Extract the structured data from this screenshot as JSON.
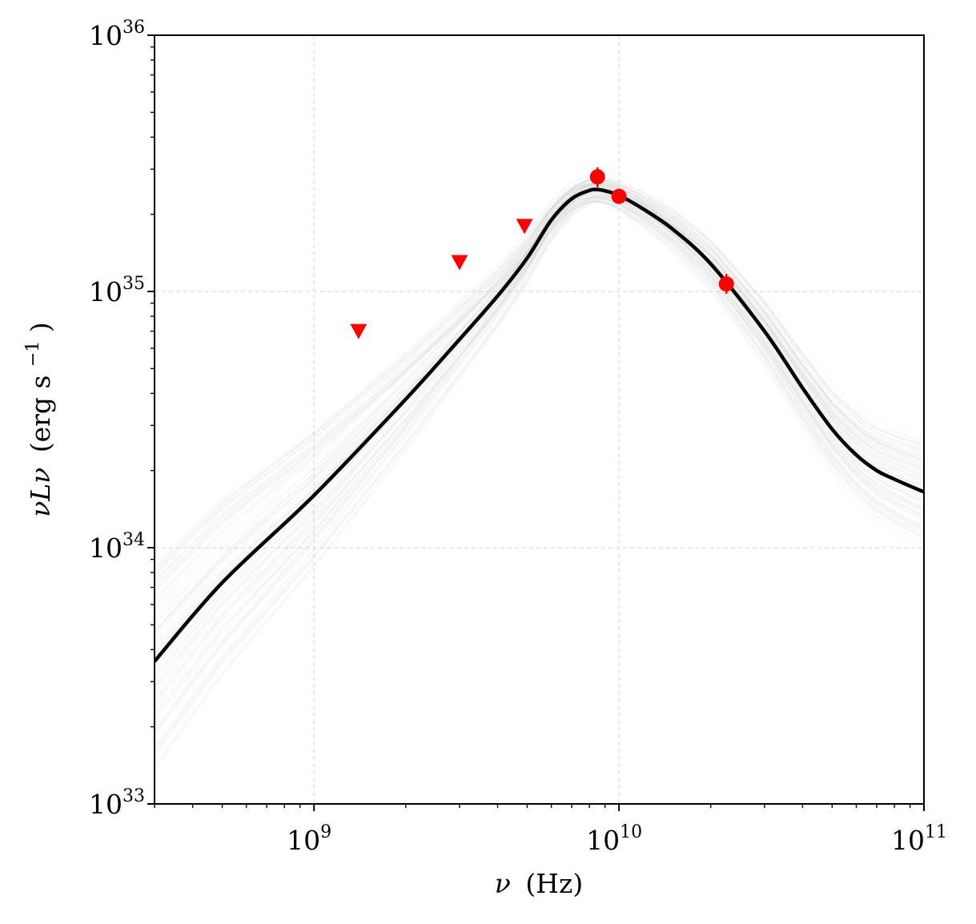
{
  "chart_data": {
    "type": "line",
    "xlabel": "ν (Hz)",
    "ylabel": "νLν (erg s−1)",
    "xlabel_parts": {
      "symbol": "ν",
      "unit": "(Hz)"
    },
    "ylabel_parts": {
      "symbol": "νLν",
      "unit": "(erg s",
      "exp": "−1",
      "close": ")"
    },
    "xscale": "log",
    "yscale": "log",
    "xlim": [
      300000000.0,
      100000000000.0
    ],
    "ylim": [
      1e+33,
      1e+36
    ],
    "grid": true,
    "x_ticks": [
      {
        "base": "10",
        "exp": "9",
        "value": 1000000000.0
      },
      {
        "base": "10",
        "exp": "10",
        "value": 10000000000.0
      },
      {
        "base": "10",
        "exp": "11",
        "value": 100000000000.0
      }
    ],
    "y_ticks": [
      {
        "base": "10",
        "exp": "33",
        "value": 1e+33
      },
      {
        "base": "10",
        "exp": "34",
        "value": 1e+34
      },
      {
        "base": "10",
        "exp": "35",
        "value": 1e+35
      },
      {
        "base": "10",
        "exp": "36",
        "value": 1e+36
      }
    ],
    "series": [
      {
        "style": "black solid line",
        "color": "#000000",
        "x": [
          300000000.0,
          500000000.0,
          1000000000.0,
          2000000000.0,
          3000000000.0,
          4000000000.0,
          5000000000.0,
          6000000000.0,
          7000000000.0,
          8000000000.0,
          8500000000.0,
          9000000000.0,
          10000000000.0,
          12000000000.0,
          15000000000.0,
          20000000000.0,
          30000000000.0,
          40000000000.0,
          50000000000.0,
          60000000000.0,
          70000000000.0,
          80000000000.0,
          100000000000.0
        ],
        "y": [
          3.6e+33,
          7.3e+33,
          1.6e+34,
          3.8e+34,
          6.5e+34,
          9.6e+34,
          1.35e+35,
          1.9e+35,
          2.3e+35,
          2.48e+35,
          2.5e+35,
          2.47e+35,
          2.37e+35,
          2.1e+35,
          1.75e+35,
          1.28e+35,
          7e+34,
          4.2e+34,
          2.9e+34,
          2.3e+34,
          2e+34,
          1.85e+34,
          1.65e+34
        ]
      },
      {
        "style": "red circles with error bars",
        "color": "#ff0000",
        "marker": "circle",
        "x": [
          8500000000.0,
          10000000000.0,
          22500000000.0
        ],
        "y": [
          2.8e+35,
          2.35e+35,
          1.07e+35
        ],
        "yerr_low": [
          2.55e+35,
          2.28e+35,
          9.8e+34
        ],
        "yerr_high": [
          3.05e+35,
          2.42e+35,
          1.17e+35
        ]
      },
      {
        "style": "red downward triangles (upper limits)",
        "color": "#ff0000",
        "marker": "triangle-down",
        "x": [
          1400000000.0,
          3000000000.0,
          4900000000.0
        ],
        "y": [
          7e+34,
          1.3e+35,
          1.8e+35
        ]
      }
    ],
    "posterior_band": {
      "color": "#bbbbbb",
      "count": 150,
      "description": "faint grey sample curves"
    }
  }
}
